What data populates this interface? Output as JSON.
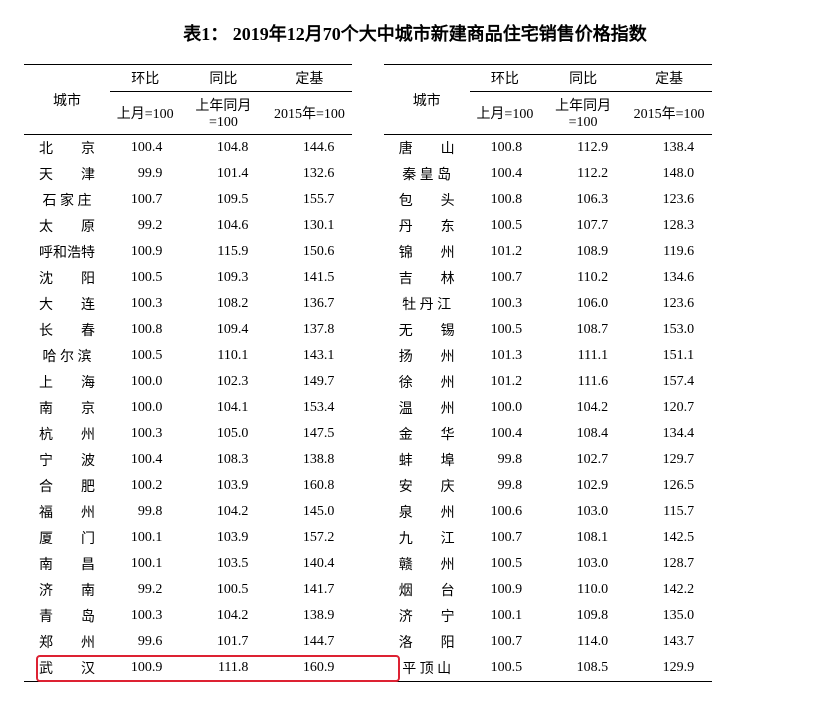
{
  "title": "表1：  2019年12月70个大中城市新建商品住宅销售价格指数",
  "headers": {
    "city": "城市",
    "huanbi": "环比",
    "tongbi": "同比",
    "dingji": "定基",
    "last_month": "上月=100",
    "last_year": "上年同月=100",
    "base2015": "2015年=100"
  },
  "rows_left": [
    {
      "city": "北　　京",
      "hb": "100.4",
      "tb": "104.8",
      "dj": "144.6"
    },
    {
      "city": "天　　津",
      "hb": "99.9",
      "tb": "101.4",
      "dj": "132.6"
    },
    {
      "city": "石 家 庄",
      "hb": "100.7",
      "tb": "109.5",
      "dj": "155.7"
    },
    {
      "city": "太　　原",
      "hb": "99.2",
      "tb": "104.6",
      "dj": "130.1"
    },
    {
      "city": "呼和浩特",
      "hb": "100.9",
      "tb": "115.9",
      "dj": "150.6"
    },
    {
      "city": "沈　　阳",
      "hb": "100.5",
      "tb": "109.3",
      "dj": "141.5"
    },
    {
      "city": "大　　连",
      "hb": "100.3",
      "tb": "108.2",
      "dj": "136.7"
    },
    {
      "city": "长　　春",
      "hb": "100.8",
      "tb": "109.4",
      "dj": "137.8"
    },
    {
      "city": "哈 尔 滨",
      "hb": "100.5",
      "tb": "110.1",
      "dj": "143.1"
    },
    {
      "city": "上　　海",
      "hb": "100.0",
      "tb": "102.3",
      "dj": "149.7"
    },
    {
      "city": "南　　京",
      "hb": "100.0",
      "tb": "104.1",
      "dj": "153.4"
    },
    {
      "city": "杭　　州",
      "hb": "100.3",
      "tb": "105.0",
      "dj": "147.5"
    },
    {
      "city": "宁　　波",
      "hb": "100.4",
      "tb": "108.3",
      "dj": "138.8"
    },
    {
      "city": "合　　肥",
      "hb": "100.2",
      "tb": "103.9",
      "dj": "160.8"
    },
    {
      "city": "福　　州",
      "hb": "99.8",
      "tb": "104.2",
      "dj": "145.0"
    },
    {
      "city": "厦　　门",
      "hb": "100.1",
      "tb": "103.9",
      "dj": "157.2"
    },
    {
      "city": "南　　昌",
      "hb": "100.1",
      "tb": "103.5",
      "dj": "140.4"
    },
    {
      "city": "济　　南",
      "hb": "99.2",
      "tb": "100.5",
      "dj": "141.7"
    },
    {
      "city": "青　　岛",
      "hb": "100.3",
      "tb": "104.2",
      "dj": "138.9"
    },
    {
      "city": "郑　　州",
      "hb": "99.6",
      "tb": "101.7",
      "dj": "144.7"
    },
    {
      "city": "武　　汉",
      "hb": "100.9",
      "tb": "111.8",
      "dj": "160.9"
    }
  ],
  "rows_right": [
    {
      "city": "唐　　山",
      "hb": "100.8",
      "tb": "112.9",
      "dj": "138.4"
    },
    {
      "city": "秦 皇 岛",
      "hb": "100.4",
      "tb": "112.2",
      "dj": "148.0"
    },
    {
      "city": "包　　头",
      "hb": "100.8",
      "tb": "106.3",
      "dj": "123.6"
    },
    {
      "city": "丹　　东",
      "hb": "100.5",
      "tb": "107.7",
      "dj": "128.3"
    },
    {
      "city": "锦　　州",
      "hb": "101.2",
      "tb": "108.9",
      "dj": "119.6"
    },
    {
      "city": "吉　　林",
      "hb": "100.7",
      "tb": "110.2",
      "dj": "134.6"
    },
    {
      "city": "牡 丹 江",
      "hb": "100.3",
      "tb": "106.0",
      "dj": "123.6"
    },
    {
      "city": "无　　锡",
      "hb": "100.5",
      "tb": "108.7",
      "dj": "153.0"
    },
    {
      "city": "扬　　州",
      "hb": "101.3",
      "tb": "111.1",
      "dj": "151.1"
    },
    {
      "city": "徐　　州",
      "hb": "101.2",
      "tb": "111.6",
      "dj": "157.4"
    },
    {
      "city": "温　　州",
      "hb": "100.0",
      "tb": "104.2",
      "dj": "120.7"
    },
    {
      "city": "金　　华",
      "hb": "100.4",
      "tb": "108.4",
      "dj": "134.4"
    },
    {
      "city": "蚌　　埠",
      "hb": "99.8",
      "tb": "102.7",
      "dj": "129.7"
    },
    {
      "city": "安　　庆",
      "hb": "99.8",
      "tb": "102.9",
      "dj": "126.5"
    },
    {
      "city": "泉　　州",
      "hb": "100.6",
      "tb": "103.0",
      "dj": "115.7"
    },
    {
      "city": "九　　江",
      "hb": "100.7",
      "tb": "108.1",
      "dj": "142.5"
    },
    {
      "city": "赣　　州",
      "hb": "100.5",
      "tb": "103.0",
      "dj": "128.7"
    },
    {
      "city": "烟　　台",
      "hb": "100.9",
      "tb": "110.0",
      "dj": "142.2"
    },
    {
      "city": "济　　宁",
      "hb": "100.1",
      "tb": "109.8",
      "dj": "135.0"
    },
    {
      "city": "洛　　阳",
      "hb": "100.7",
      "tb": "114.0",
      "dj": "143.7"
    },
    {
      "city": "平 顶 山",
      "hb": "100.5",
      "tb": "108.5",
      "dj": "129.9"
    }
  ],
  "highlight_row_index": 20,
  "colors": {
    "text": "#000000",
    "border": "#000000",
    "highlight": "#dd2233",
    "bg": "#ffffff"
  }
}
